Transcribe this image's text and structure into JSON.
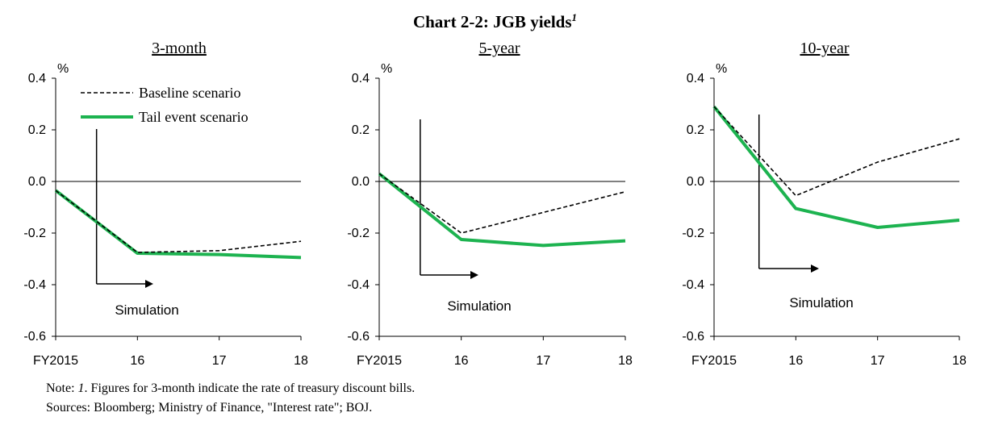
{
  "title": {
    "text": "Chart 2-2: JGB yields",
    "sup": "1"
  },
  "chart_data": [
    {
      "type": "line",
      "title": "3-month",
      "ylabel": "%",
      "ylim": [
        -0.6,
        0.4
      ],
      "yticks": [
        "0.4",
        "0.2",
        "0.0",
        "-0.2",
        "-0.4",
        "-0.6"
      ],
      "categories": [
        "FY2015",
        "16",
        "17",
        "18"
      ],
      "series": [
        {
          "name": "Baseline scenario",
          "values": [
            -0.035,
            -0.275,
            -0.268,
            -0.232
          ],
          "style": "dashed",
          "color": "#000000"
        },
        {
          "name": "Tail event scenario",
          "values": [
            -0.035,
            -0.278,
            -0.283,
            -0.295
          ],
          "style": "solid",
          "color": "#1db350"
        }
      ],
      "annotation": "Simulation",
      "simulation_x": 0.5
    },
    {
      "type": "line",
      "title": "5-year",
      "ylabel": "%",
      "ylim": [
        -0.6,
        0.4
      ],
      "yticks": [
        "0.4",
        "0.2",
        "0.0",
        "-0.2",
        "-0.4",
        "-0.6"
      ],
      "categories": [
        "FY2015",
        "16",
        "17",
        "18"
      ],
      "series": [
        {
          "name": "Baseline scenario",
          "values": [
            0.03,
            -0.2,
            -0.12,
            -0.04
          ],
          "style": "dashed",
          "color": "#000000"
        },
        {
          "name": "Tail event scenario",
          "values": [
            0.03,
            -0.225,
            -0.248,
            -0.23
          ],
          "style": "solid",
          "color": "#1db350"
        }
      ],
      "annotation": "Simulation",
      "simulation_x": 0.5
    },
    {
      "type": "line",
      "title": "10-year",
      "ylabel": "%",
      "ylim": [
        -0.6,
        0.4
      ],
      "yticks": [
        "0.4",
        "0.2",
        "0.0",
        "-0.2",
        "-0.4",
        "-0.6"
      ],
      "categories": [
        "FY2015",
        "16",
        "17",
        "18"
      ],
      "series": [
        {
          "name": "Baseline scenario",
          "values": [
            0.29,
            -0.055,
            0.075,
            0.165
          ],
          "style": "dashed",
          "color": "#000000"
        },
        {
          "name": "Tail event scenario",
          "values": [
            0.29,
            -0.105,
            -0.178,
            -0.15
          ],
          "style": "solid",
          "color": "#1db350"
        }
      ],
      "annotation": "Simulation",
      "simulation_x": 0.55
    }
  ],
  "legend": {
    "baseline": "Baseline scenario",
    "tail": "Tail event scenario"
  },
  "note": {
    "line1_prefix": "Note: ",
    "line1_italic": "1",
    "line1_rest": ". Figures for 3-month indicate the rate of treasury discount bills.",
    "line2": "Sources: Bloomberg; Ministry of Finance, \"Interest rate\"; BOJ."
  }
}
